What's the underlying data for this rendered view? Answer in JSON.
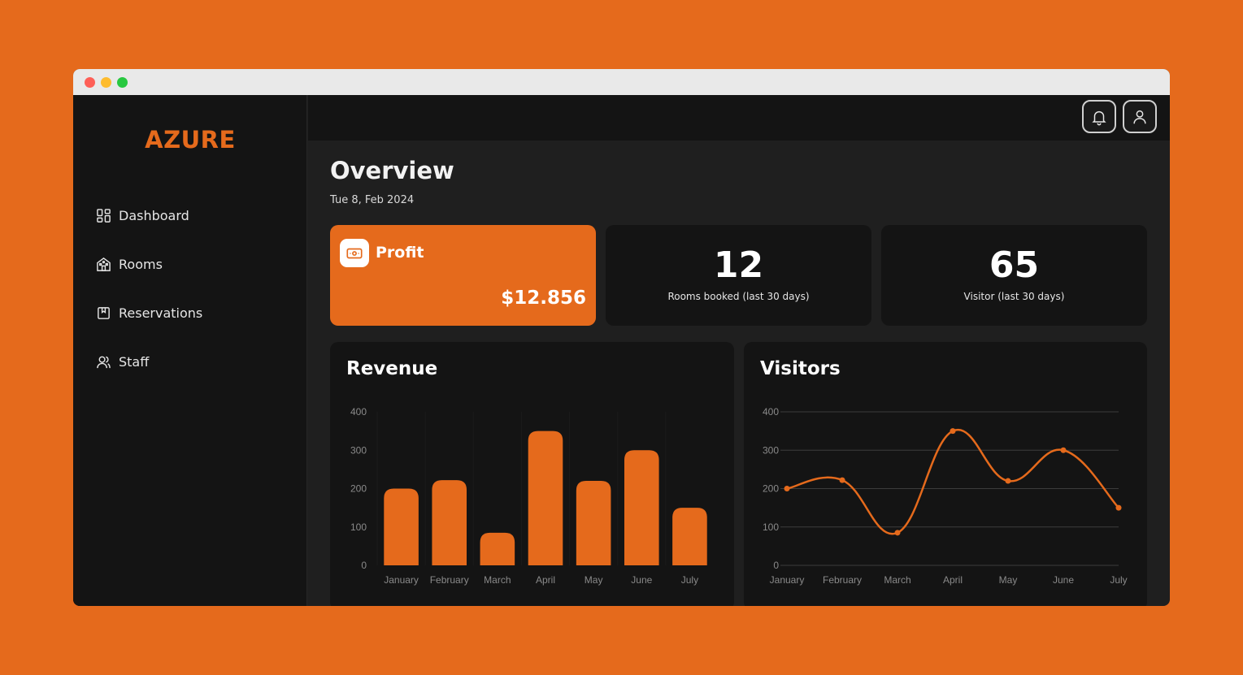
{
  "app": {
    "brand": "AZURE",
    "brand_color": "#e56a1c",
    "window_controls": [
      "close",
      "minimize",
      "maximize"
    ]
  },
  "sidebar": {
    "items": [
      {
        "label": "Dashboard",
        "icon": "dashboard-icon"
      },
      {
        "label": "Rooms",
        "icon": "building-icon"
      },
      {
        "label": "Reservations",
        "icon": "bookmark-icon"
      },
      {
        "label": "Staff",
        "icon": "users-icon"
      }
    ]
  },
  "topbar": {
    "buttons": [
      {
        "icon": "bell-icon"
      },
      {
        "icon": "user-icon"
      }
    ]
  },
  "main": {
    "title": "Overview",
    "date": "Tue 8, Feb 2024"
  },
  "stats": {
    "profit": {
      "label": "Profit",
      "value": "$12.856",
      "icon": "cash-icon"
    },
    "rooms": {
      "value": "12",
      "label": "Rooms booked (last 30 days)"
    },
    "visitors": {
      "value": "65",
      "label": "Visitor (last 30 days)"
    }
  },
  "charts": {
    "revenue_title": "Revenue",
    "visitors_title": "Visitors"
  },
  "chart_data": [
    {
      "type": "bar",
      "title": "Revenue",
      "categories": [
        "January",
        "February",
        "March",
        "April",
        "May",
        "June",
        "July"
      ],
      "values": [
        200,
        222,
        85,
        350,
        220,
        300,
        150
      ],
      "ylim": [
        0,
        400
      ],
      "yticks": [
        0,
        100,
        200,
        300,
        400
      ],
      "grid": false,
      "color": "#e56a1c"
    },
    {
      "type": "line",
      "title": "Visitors",
      "categories": [
        "January",
        "February",
        "March",
        "April",
        "May",
        "June",
        "July"
      ],
      "values": [
        200,
        222,
        85,
        350,
        220,
        300,
        150
      ],
      "ylim": [
        0,
        400
      ],
      "yticks": [
        0,
        100,
        200,
        300,
        400
      ],
      "grid": true,
      "smooth": true,
      "color": "#e56a1c"
    }
  ]
}
